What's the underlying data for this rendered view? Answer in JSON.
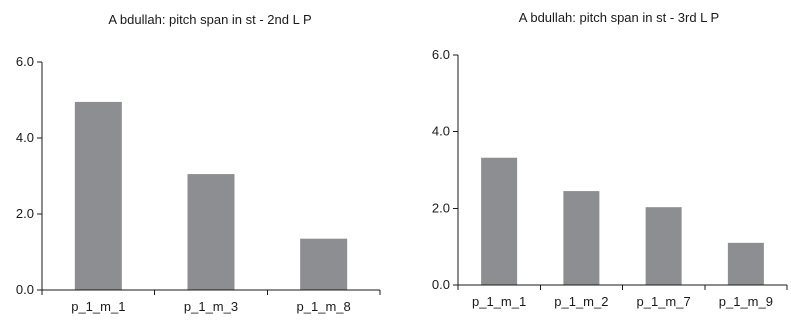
{
  "chart_data": [
    {
      "type": "bar",
      "title": "A bdullah: pitch span in st - 2nd L P",
      "categories": [
        "p_1_m_1",
        "p_1_m_3",
        "p_1_m_8"
      ],
      "values": [
        4.95,
        3.05,
        1.35
      ],
      "y_ticks": [
        "0.0",
        "2.0",
        "4.0",
        "6.0"
      ],
      "ylim": [
        0,
        6
      ],
      "grid": false,
      "legend": "none",
      "bar_color": "#8c8e92"
    },
    {
      "type": "bar",
      "title": "A bdullah: pitch span in st - 3rd L P",
      "categories": [
        "p_1_m_1",
        "p_1_m_2",
        "p_1_m_7",
        "p_1_m_9"
      ],
      "values": [
        3.32,
        2.45,
        2.03,
        1.1
      ],
      "y_ticks": [
        "0.0",
        "2.0",
        "4.0",
        "6.0"
      ],
      "ylim": [
        0,
        6
      ],
      "grid": false,
      "legend": "none",
      "bar_color": "#8c8e92"
    }
  ]
}
